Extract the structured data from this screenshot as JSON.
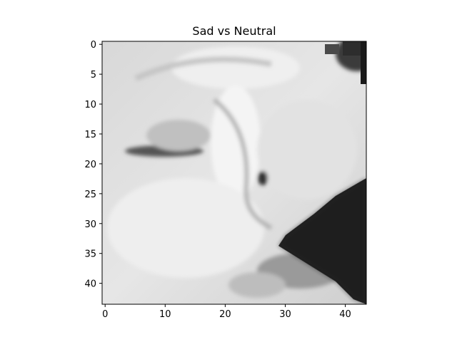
{
  "chart_data": {
    "type": "heatmap",
    "title": "Sad vs Neutral",
    "xlabel": "",
    "ylabel": "",
    "image_size": [
      44,
      44
    ],
    "xlim": [
      -0.5,
      43.5
    ],
    "ylim": [
      43.5,
      -0.5
    ],
    "colormap": "gray",
    "grid": false,
    "xticks": [
      0,
      10,
      20,
      30,
      40
    ],
    "yticks": [
      0,
      5,
      10,
      15,
      20,
      25,
      30,
      35,
      40
    ],
    "xtick_labels": [
      "0",
      "10",
      "20",
      "30",
      "40"
    ],
    "ytick_labels": [
      "0",
      "5",
      "10",
      "15",
      "20",
      "25",
      "30",
      "35",
      "40"
    ]
  }
}
